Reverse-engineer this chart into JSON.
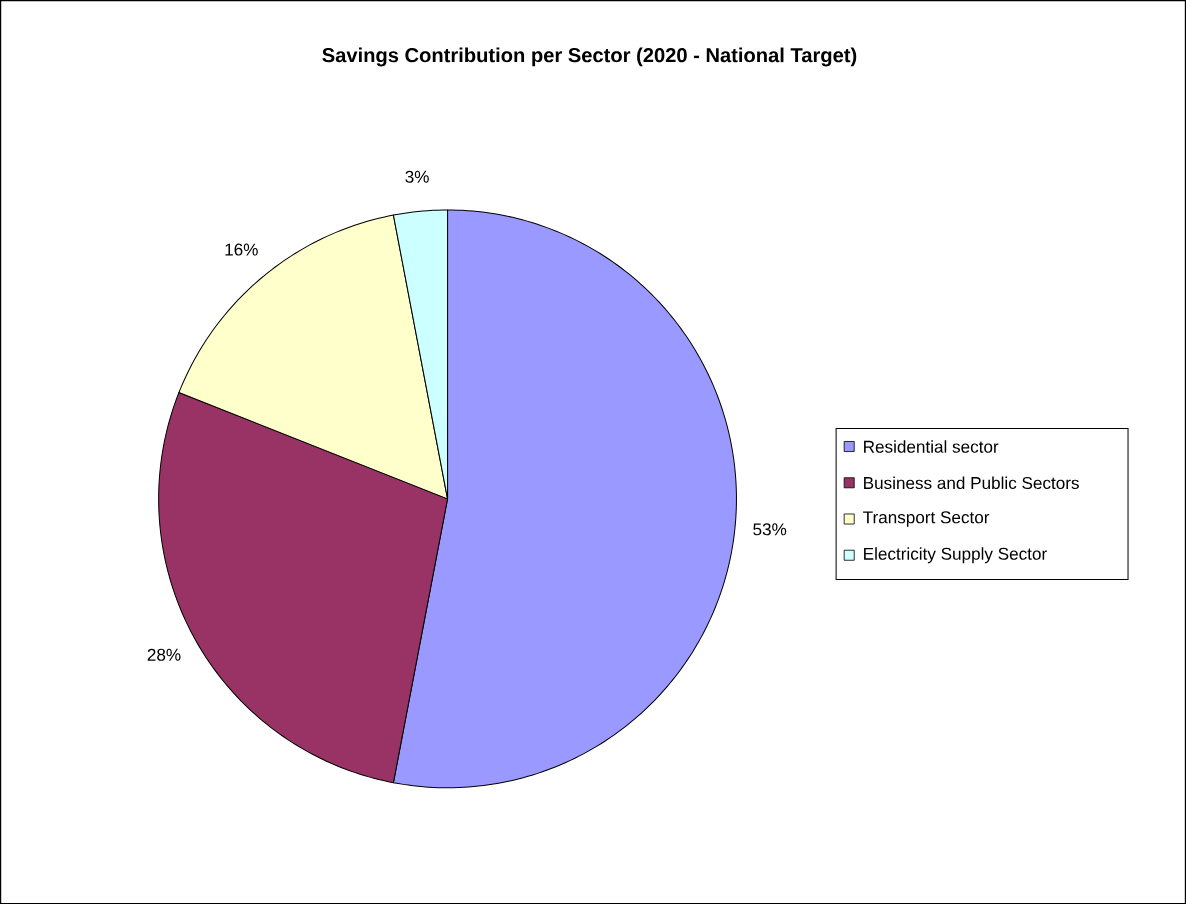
{
  "chart_data": {
    "type": "pie",
    "title": "Savings Contribution per Sector (2020 - National Target)",
    "categories": [
      "Residential sector",
      "Business and Public Sectors",
      "Transport Sector",
      "Electricity Supply Sector"
    ],
    "values": [
      53,
      28,
      16,
      3
    ],
    "colors": [
      "#9999ff",
      "#993366",
      "#ffffcc",
      "#ccffff"
    ],
    "value_labels": [
      "53%",
      "28%",
      "16%",
      "3%"
    ],
    "legend": "right"
  }
}
